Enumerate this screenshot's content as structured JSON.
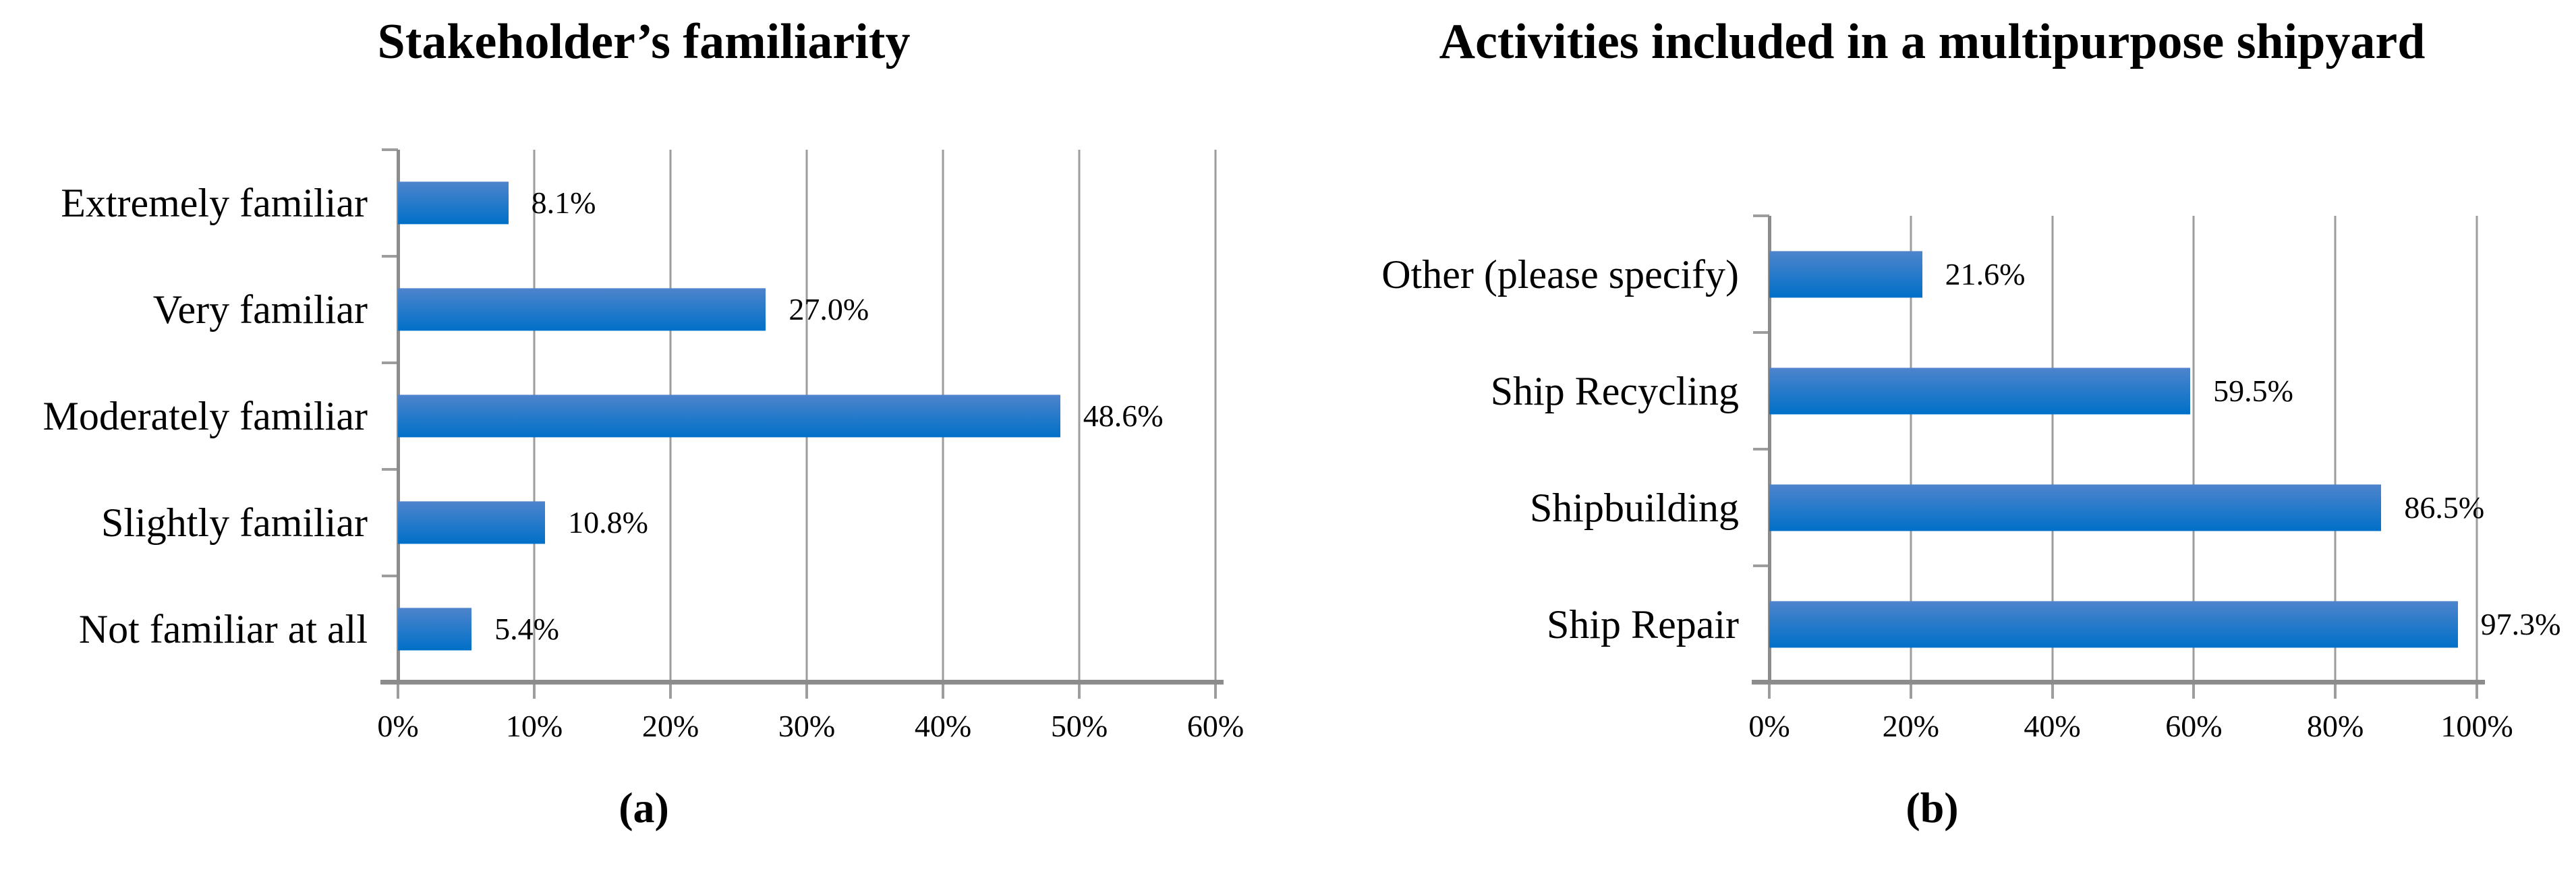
{
  "colors": {
    "background": "#FFFFFF",
    "text": "#000000",
    "gridline": "#9D9D9D",
    "axis": "#8C8C8C",
    "bar_gradient_top": "#4E84CC",
    "bar_gradient_bottom": "#0070C8"
  },
  "chart_data": [
    {
      "type": "bar",
      "orientation": "horizontal",
      "title": "Stakeholder’s familiarity",
      "categories": [
        "Extremely familiar",
        "Very familiar",
        "Moderately familiar",
        "Slightly familiar",
        "Not familiar at all"
      ],
      "values": [
        8.1,
        27.0,
        48.6,
        10.8,
        5.4
      ],
      "data_labels": [
        "8.1%",
        "27.0%",
        "48.6%",
        "10.8%",
        "5.4%"
      ],
      "xlim": [
        0,
        60
      ],
      "tick_step": 10,
      "tick_labels": [
        "0%",
        "10%",
        "20%",
        "30%",
        "40%",
        "50%",
        "60%"
      ],
      "grid": true,
      "legend": "none",
      "caption": "(a)"
    },
    {
      "type": "bar",
      "orientation": "horizontal",
      "title": "Activities included in a multipurpose shipyard",
      "categories": [
        "Other (please specify)",
        "Ship Recycling",
        "Shipbuilding",
        "Ship Repair"
      ],
      "values": [
        21.6,
        59.5,
        86.5,
        97.3
      ],
      "data_labels": [
        "21.6%",
        "59.5%",
        "86.5%",
        "97.3%"
      ],
      "xlim": [
        0,
        100
      ],
      "tick_step": 20,
      "tick_labels": [
        "0%",
        "20%",
        "40%",
        "60%",
        "80%",
        "100%"
      ],
      "grid": true,
      "legend": "none",
      "caption": "(b)"
    }
  ]
}
